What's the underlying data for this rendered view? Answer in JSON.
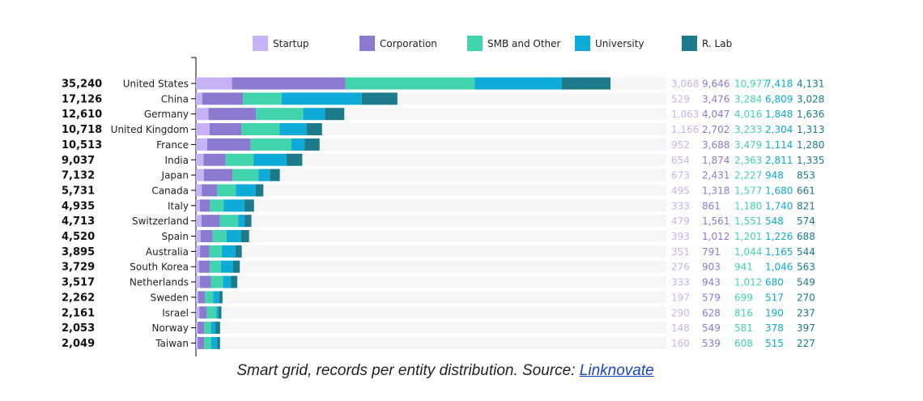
{
  "caption": {
    "text": "Smart grid, records per entity distribution. Source: ",
    "link": "Linknovate"
  },
  "colors": {
    "Startup": "#c6b3f5",
    "Corporation": "#8c7ad0",
    "SMB and Other": "#42d4ac",
    "University": "#0eaad8",
    "R. Lab": "#1d7a8a"
  },
  "chart_data": {
    "type": "bar",
    "orientation": "horizontal",
    "stacked": true,
    "legend_position": "top",
    "categories": [
      "United States",
      "China",
      "Germany",
      "United Kingdom",
      "France",
      "India",
      "Japan",
      "Canada",
      "Italy",
      "Switzerland",
      "Spain",
      "Australia",
      "South Korea",
      "Netherlands",
      "Sweden",
      "Israel",
      "Norway",
      "Taiwan"
    ],
    "totals": [
      "35,240",
      "17,126",
      "12,610",
      "10,718",
      "10,513",
      "9,037",
      "7,132",
      "5,731",
      "4,935",
      "4,713",
      "4,520",
      "3,895",
      "3,729",
      "3,517",
      "2,262",
      "2,161",
      "2,053",
      "2,049"
    ],
    "series": [
      {
        "name": "Startup",
        "values": [
          3068,
          529,
          1063,
          1166,
          952,
          654,
          673,
          495,
          333,
          479,
          393,
          351,
          276,
          333,
          197,
          290,
          148,
          160
        ],
        "labels": [
          "3,068",
          "529",
          "1,063",
          "1,166",
          "952",
          "654",
          "673",
          "495",
          "333",
          "479",
          "393",
          "351",
          "276",
          "333",
          "197",
          "290",
          "148",
          "160"
        ]
      },
      {
        "name": "Corporation",
        "values": [
          9646,
          3476,
          4047,
          2702,
          3688,
          1874,
          2431,
          1318,
          861,
          1561,
          1012,
          791,
          903,
          943,
          579,
          628,
          549,
          539
        ],
        "labels": [
          "9,646",
          "3,476",
          "4,047",
          "2,702",
          "3,688",
          "1,874",
          "2,431",
          "1,318",
          "861",
          "1,561",
          "1,012",
          "791",
          "903",
          "943",
          "579",
          "628",
          "549",
          "539"
        ]
      },
      {
        "name": "SMB and Other",
        "values": [
          10977,
          3284,
          4016,
          3233,
          3479,
          2363,
          2227,
          1577,
          1180,
          1551,
          1201,
          1044,
          941,
          1012,
          699,
          816,
          581,
          608
        ],
        "labels": [
          "10,977",
          "3,284",
          "4,016",
          "3,233",
          "3,479",
          "2,363",
          "2,227",
          "1,577",
          "1,180",
          "1,551",
          "1,201",
          "1,044",
          "941",
          "1,012",
          "699",
          "816",
          "581",
          "608"
        ]
      },
      {
        "name": "University",
        "values": [
          7418,
          6809,
          1848,
          2304,
          1114,
          2811,
          948,
          1680,
          1740,
          548,
          1226,
          1165,
          1046,
          680,
          517,
          190,
          378,
          515
        ],
        "labels": [
          "7,418",
          "6,809",
          "1,848",
          "2,304",
          "1,114",
          "2,811",
          "948",
          "1,680",
          "1,740",
          "548",
          "1,226",
          "1,165",
          "1,046",
          "680",
          "517",
          "190",
          "378",
          "515"
        ]
      },
      {
        "name": "R. Lab",
        "values": [
          4131,
          3028,
          1636,
          1313,
          1280,
          1335,
          853,
          661,
          821,
          574,
          688,
          544,
          563,
          549,
          270,
          237,
          397,
          227
        ],
        "labels": [
          "4,131",
          "3,028",
          "1,636",
          "1,313",
          "1,280",
          "1,335",
          "853",
          "661",
          "821",
          "574",
          "688",
          "544",
          "563",
          "549",
          "270",
          "237",
          "397",
          "227"
        ]
      }
    ]
  }
}
